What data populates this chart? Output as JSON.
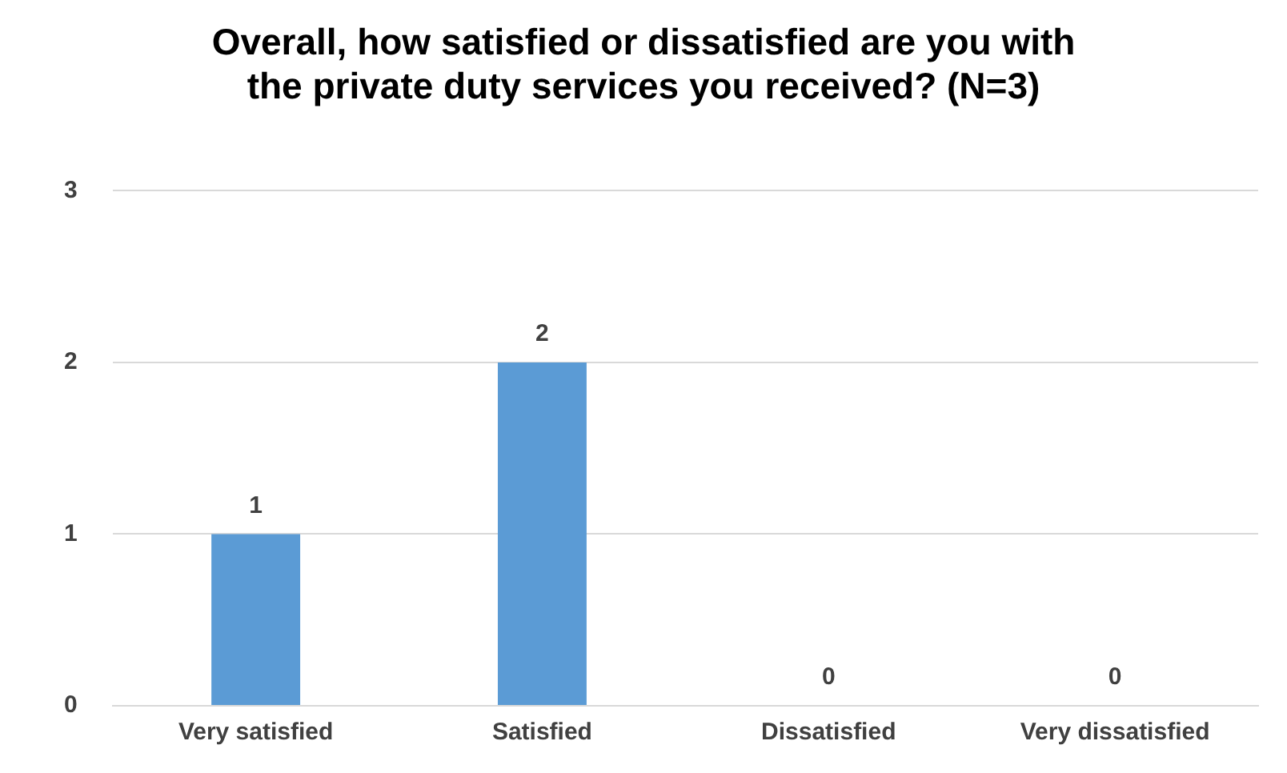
{
  "chart_data": {
    "type": "bar",
    "title": "Overall, how satisfied or dissatisfied are you with the private duty services you received? (N=3)",
    "categories": [
      "Very satisfied",
      "Satisfied",
      "Dissatisfied",
      "Very dissatisfied"
    ],
    "values": [
      1,
      2,
      0,
      0
    ],
    "color": "#5b9bd5",
    "ylim": [
      0,
      3
    ],
    "yticks": [
      0,
      1,
      2,
      3
    ],
    "grid": "y",
    "data_labels": true
  }
}
